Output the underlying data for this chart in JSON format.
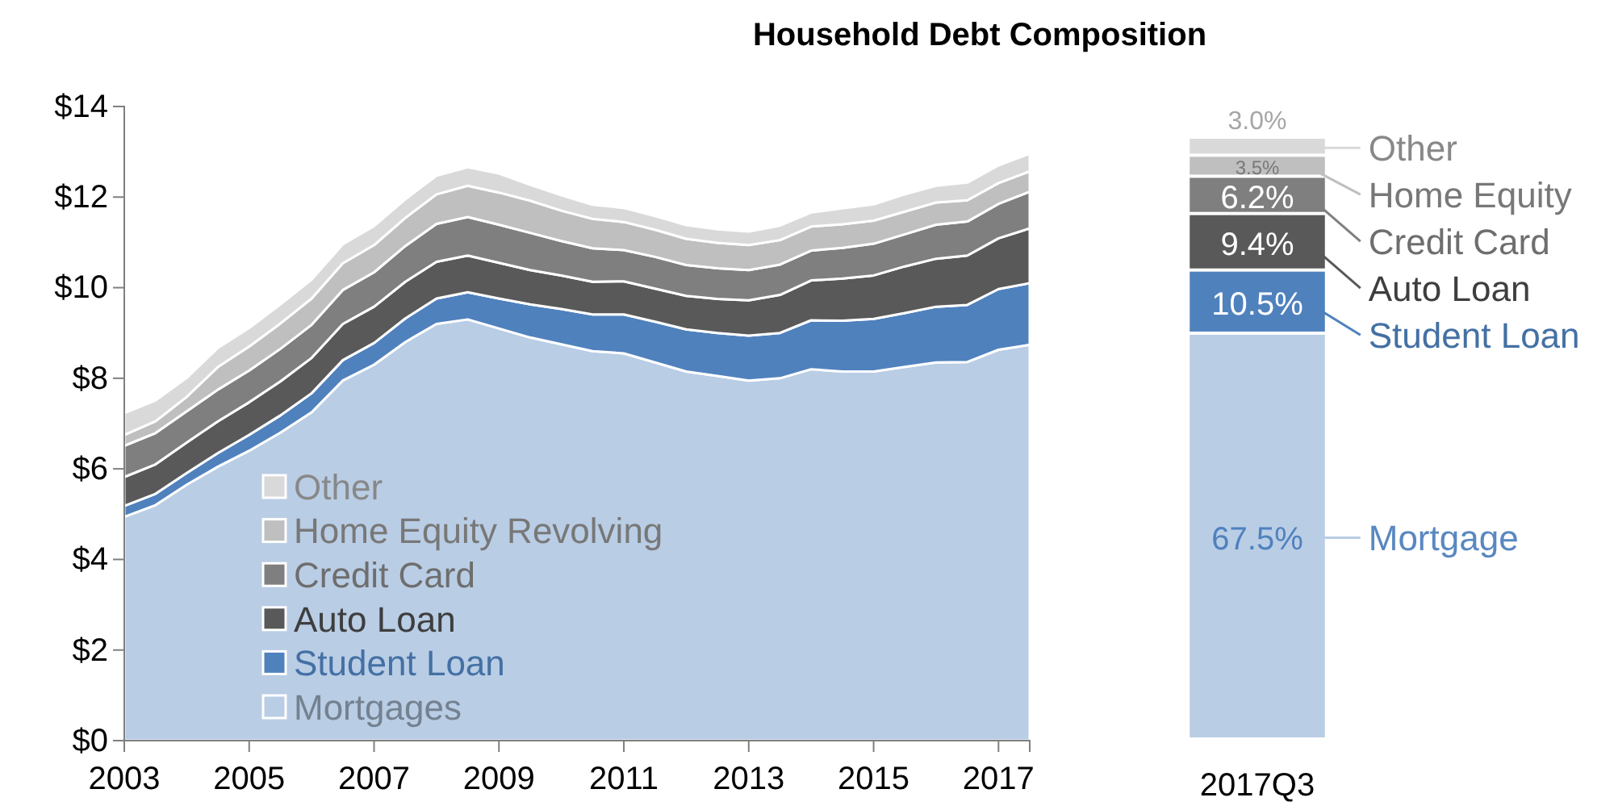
{
  "chart_data": [
    {
      "type": "area",
      "title": "Household Debt Composition",
      "stacked": true,
      "legend": "bottom left",
      "grid": false,
      "x": [
        2003,
        2003.5,
        2004,
        2004.5,
        2005,
        2005.5,
        2006,
        2006.5,
        2007,
        2007.5,
        2008,
        2008.5,
        2009,
        2009.5,
        2010,
        2010.5,
        2011,
        2011.5,
        2012,
        2012.5,
        2013,
        2013.5,
        2014,
        2014.5,
        2015,
        2015.5,
        2016,
        2016.5,
        2017,
        2017.5
      ],
      "xlim": [
        2003,
        2017.5
      ],
      "xticks": [
        2003,
        2005,
        2007,
        2009,
        2011,
        2013,
        2015,
        2017
      ],
      "ylim": [
        0,
        14
      ],
      "yticks": [
        {
          "value": 0,
          "label": "$0"
        },
        {
          "value": 2,
          "label": "$2"
        },
        {
          "value": 4,
          "label": "$4"
        },
        {
          "value": 6,
          "label": "$6"
        },
        {
          "value": 8,
          "label": "$8"
        },
        {
          "value": 10,
          "label": "$10"
        },
        {
          "value": 12,
          "label": "$12"
        },
        {
          "value": 14,
          "label": "$14"
        }
      ],
      "series": [
        {
          "name": "Mortgages",
          "color": "#b9cde5",
          "values": [
            4.94,
            5.2,
            5.65,
            6.05,
            6.4,
            6.8,
            7.25,
            7.95,
            8.3,
            8.8,
            9.2,
            9.3,
            9.1,
            8.9,
            8.75,
            8.6,
            8.55,
            8.35,
            8.15,
            8.05,
            7.95,
            8.0,
            8.2,
            8.15,
            8.15,
            8.25,
            8.35,
            8.36,
            8.63,
            8.74
          ]
        },
        {
          "name": "Student Loan",
          "color": "#4f81bd",
          "values": [
            0.24,
            0.25,
            0.26,
            0.3,
            0.35,
            0.38,
            0.42,
            0.45,
            0.48,
            0.52,
            0.56,
            0.6,
            0.66,
            0.73,
            0.78,
            0.81,
            0.86,
            0.9,
            0.93,
            0.95,
            0.99,
            1.0,
            1.08,
            1.12,
            1.16,
            1.19,
            1.23,
            1.26,
            1.34,
            1.36
          ]
        },
        {
          "name": "Auto Loan",
          "color": "#595959",
          "values": [
            0.64,
            0.65,
            0.67,
            0.7,
            0.72,
            0.75,
            0.78,
            0.8,
            0.8,
            0.81,
            0.81,
            0.81,
            0.79,
            0.76,
            0.74,
            0.72,
            0.73,
            0.73,
            0.74,
            0.75,
            0.78,
            0.84,
            0.88,
            0.93,
            0.96,
            1.03,
            1.06,
            1.09,
            1.12,
            1.21
          ]
        },
        {
          "name": "Credit Card",
          "color": "#7f7f7f",
          "values": [
            0.69,
            0.69,
            0.69,
            0.7,
            0.7,
            0.72,
            0.73,
            0.75,
            0.76,
            0.79,
            0.84,
            0.85,
            0.84,
            0.82,
            0.76,
            0.74,
            0.69,
            0.7,
            0.68,
            0.68,
            0.67,
            0.67,
            0.66,
            0.68,
            0.7,
            0.71,
            0.75,
            0.75,
            0.76,
            0.81
          ]
        },
        {
          "name": "Home Equity Revolving",
          "color": "#bfbfbf",
          "values": [
            0.24,
            0.26,
            0.32,
            0.5,
            0.53,
            0.56,
            0.58,
            0.59,
            0.6,
            0.62,
            0.65,
            0.69,
            0.71,
            0.71,
            0.67,
            0.65,
            0.62,
            0.6,
            0.58,
            0.56,
            0.55,
            0.54,
            0.53,
            0.52,
            0.51,
            0.5,
            0.49,
            0.47,
            0.46,
            0.45
          ]
        },
        {
          "name": "Other",
          "color": "#d9d9d9",
          "values": [
            0.48,
            0.46,
            0.42,
            0.42,
            0.41,
            0.42,
            0.42,
            0.42,
            0.42,
            0.41,
            0.41,
            0.41,
            0.42,
            0.35,
            0.34,
            0.31,
            0.31,
            0.3,
            0.3,
            0.3,
            0.3,
            0.32,
            0.31,
            0.35,
            0.36,
            0.38,
            0.37,
            0.39,
            0.39,
            0.39
          ]
        }
      ]
    },
    {
      "type": "bar",
      "stacked": true,
      "tick_labels": "x",
      "legend": "right",
      "categories": [
        "2017Q3"
      ],
      "series": [
        {
          "name": "Mortgage",
          "color": "#b9cde5",
          "values": [
            67.5
          ],
          "value_labels": [
            "67.5%"
          ]
        },
        {
          "name": "Student Loan",
          "color": "#4f81bd",
          "values": [
            10.5
          ],
          "value_labels": [
            "10.5%"
          ]
        },
        {
          "name": "Auto Loan",
          "color": "#595959",
          "values": [
            9.4
          ],
          "value_labels": [
            "9.4%"
          ]
        },
        {
          "name": "Credit Card",
          "color": "#7f7f7f",
          "values": [
            6.2
          ],
          "value_labels": [
            "6.2%"
          ]
        },
        {
          "name": "Home Equity",
          "color": "#bfbfbf",
          "values": [
            3.5
          ],
          "value_labels": [
            "3.5%"
          ]
        },
        {
          "name": "Other",
          "color": "#d9d9d9",
          "values": [
            3.0
          ],
          "value_labels": [
            "3.0%"
          ]
        }
      ]
    }
  ]
}
